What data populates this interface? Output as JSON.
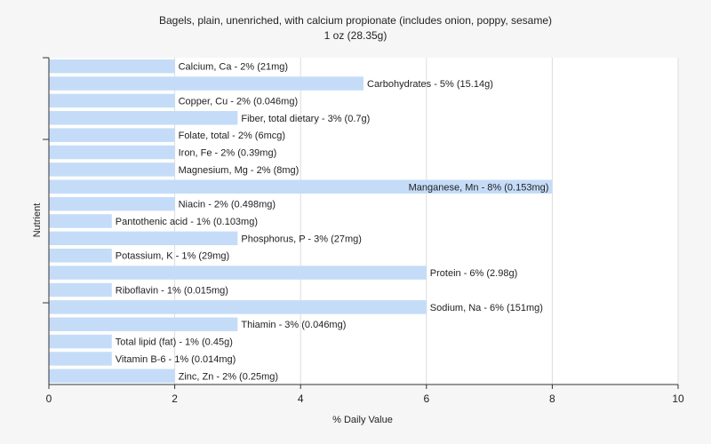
{
  "chart_data": {
    "type": "bar",
    "orientation": "horizontal",
    "title": "Bagels, plain, unenriched, with calcium propionate (includes onion, poppy, sesame)",
    "subtitle": "1 oz (28.35g)",
    "xlabel": "% Daily Value",
    "ylabel": "Nutrient",
    "xlim": [
      0,
      10
    ],
    "xticks": [
      "0",
      "2",
      "4",
      "6",
      "8",
      "10"
    ],
    "grid": true,
    "bar_color": "#c5dcf8",
    "categories": [
      "Calcium, Ca",
      "Carbohydrates",
      "Copper, Cu",
      "Fiber, total dietary",
      "Folate, total",
      "Iron, Fe",
      "Magnesium, Mg",
      "Manganese, Mn",
      "Niacin",
      "Pantothenic acid",
      "Phosphorus, P",
      "Potassium, K",
      "Protein",
      "Riboflavin",
      "Sodium, Na",
      "Thiamin",
      "Total lipid (fat)",
      "Vitamin B-6",
      "Zinc, Zn"
    ],
    "values": [
      2,
      5,
      2,
      3,
      2,
      2,
      2,
      8,
      2,
      1,
      3,
      1,
      6,
      1,
      6,
      3,
      1,
      1,
      2
    ],
    "labels": [
      "Calcium, Ca - 2% (21mg)",
      "Carbohydrates - 5% (15.14g)",
      "Copper, Cu - 2% (0.046mg)",
      "Fiber, total dietary - 3% (0.7g)",
      "Folate, total - 2% (6mcg)",
      "Iron, Fe - 2% (0.39mg)",
      "Magnesium, Mg - 2% (8mg)",
      "Manganese, Mn - 8% (0.153mg)",
      "Niacin - 2% (0.498mg)",
      "Pantothenic acid - 1% (0.103mg)",
      "Phosphorus, P - 3% (27mg)",
      "Potassium, K - 1% (29mg)",
      "Protein - 6% (2.98g)",
      "Riboflavin - 1% (0.015mg)",
      "Sodium, Na - 6% (151mg)",
      "Thiamin - 3% (0.046mg)",
      "Total lipid (fat) - 1% (0.45g)",
      "Vitamin B-6 - 1% (0.014mg)",
      "Zinc, Zn - 2% (0.25mg)"
    ]
  }
}
